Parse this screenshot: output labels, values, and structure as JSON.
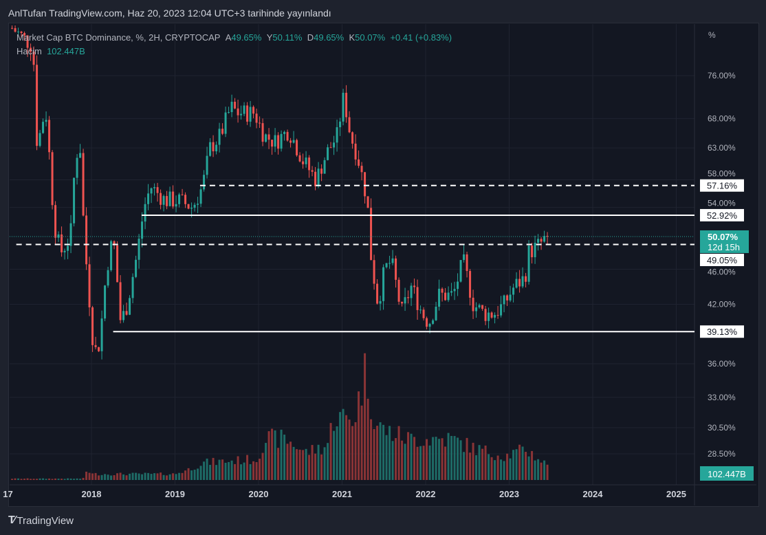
{
  "header": {
    "published": "AnlTufan TradingView.com, Haz 20, 2023 12:04 UTC+3 tarihinde yayınlandı"
  },
  "legend": {
    "symbol": "Market Cap BTC Dominance, %, 2H, CRYPTOCAP",
    "open_label": "A",
    "open": "49.65%",
    "high_label": "Y",
    "high": "50.11%",
    "low_label": "D",
    "low": "49.65%",
    "close_label": "K",
    "close": "50.07%",
    "change": "+0.41 (+0.83%)",
    "volume_label": "Hacim",
    "volume": "102.447B"
  },
  "footer": {
    "brand": "TradingView"
  },
  "colors": {
    "up": "#26a69a",
    "down": "#ef5350",
    "bg": "#131722"
  },
  "chart_data": {
    "type": "candlestick",
    "title": "Market Cap BTC Dominance, %, CRYPTOCAP",
    "yscale": "log",
    "yunit": "%",
    "ylim": [
      26.5,
      84
    ],
    "xlim": [
      2016.9,
      2025.15
    ],
    "y_ticks": [
      "76.00%",
      "68.00%",
      "63.00%",
      "58.00%",
      "54.00%",
      "46.00%",
      "42.00%",
      "36.00%",
      "33.00%",
      "30.50%",
      "28.50%"
    ],
    "y_tick_values": [
      76,
      68,
      63,
      58,
      54,
      46,
      42,
      36,
      33,
      30.5,
      28.5
    ],
    "x_ticks": [
      "17",
      "2018",
      "2019",
      "2020",
      "2021",
      "2022",
      "2023",
      "2024",
      "2025"
    ],
    "x_tick_values": [
      2017,
      2018,
      2019,
      2020,
      2021,
      2022,
      2023,
      2024,
      2025
    ],
    "close_path": [
      [
        2017.05,
        86
      ],
      [
        2017.3,
        82
      ],
      [
        2017.35,
        63
      ],
      [
        2017.45,
        70
      ],
      [
        2017.55,
        52
      ],
      [
        2017.63,
        48
      ],
      [
        2017.75,
        50
      ],
      [
        2017.81,
        62
      ],
      [
        2017.87,
        63
      ],
      [
        2017.91,
        50
      ],
      [
        2017.98,
        42
      ],
      [
        2018.03,
        37
      ],
      [
        2018.1,
        38
      ],
      [
        2018.18,
        46
      ],
      [
        2018.26,
        50
      ],
      [
        2018.35,
        40
      ],
      [
        2018.43,
        42
      ],
      [
        2018.55,
        48
      ],
      [
        2018.63,
        54
      ],
      [
        2018.71,
        57
      ],
      [
        2018.88,
        55
      ],
      [
        2019.04,
        55
      ],
      [
        2019.21,
        54
      ],
      [
        2019.33,
        57
      ],
      [
        2019.42,
        63
      ],
      [
        2019.54,
        65
      ],
      [
        2019.67,
        70
      ],
      [
        2019.75,
        69
      ],
      [
        2019.95,
        69
      ],
      [
        2020.07,
        65
      ],
      [
        2020.2,
        64
      ],
      [
        2020.36,
        66
      ],
      [
        2020.53,
        61
      ],
      [
        2020.69,
        58
      ],
      [
        2020.81,
        62
      ],
      [
        2020.94,
        65
      ],
      [
        2021.02,
        72
      ],
      [
        2021.1,
        65
      ],
      [
        2021.18,
        62
      ],
      [
        2021.3,
        55
      ],
      [
        2021.35,
        47
      ],
      [
        2021.43,
        42
      ],
      [
        2021.51,
        46
      ],
      [
        2021.59,
        47
      ],
      [
        2021.71,
        41
      ],
      [
        2021.83,
        44
      ],
      [
        2021.96,
        41
      ],
      [
        2022.04,
        40
      ],
      [
        2022.16,
        43
      ],
      [
        2022.33,
        43
      ],
      [
        2022.45,
        47
      ],
      [
        2022.57,
        42
      ],
      [
        2022.7,
        41
      ],
      [
        2022.82,
        41
      ],
      [
        2022.94,
        42
      ],
      [
        2023.06,
        44
      ],
      [
        2023.19,
        45
      ],
      [
        2023.23,
        48
      ],
      [
        2023.36,
        49
      ],
      [
        2023.46,
        50.07
      ]
    ],
    "volume_path_B": [
      [
        2017.0,
        9
      ],
      [
        2017.9,
        9
      ],
      [
        2017.95,
        70
      ],
      [
        2018.0,
        40
      ],
      [
        2019.0,
        40
      ],
      [
        2019.16,
        70
      ],
      [
        2019.33,
        115
      ],
      [
        2019.99,
        140
      ],
      [
        2020.07,
        275
      ],
      [
        2020.32,
        275
      ],
      [
        2020.57,
        185
      ],
      [
        2020.82,
        230
      ],
      [
        2020.9,
        415
      ],
      [
        2021.15,
        415
      ],
      [
        2021.28,
        735
      ],
      [
        2021.4,
        370
      ],
      [
        2021.56,
        320
      ],
      [
        2021.8,
        275
      ],
      [
        2022.3,
        275
      ],
      [
        2022.62,
        205
      ],
      [
        2022.95,
        160
      ],
      [
        2023.2,
        205
      ],
      [
        2023.45,
        102.447
      ]
    ],
    "last_price": "50.07%",
    "countdown": "12d 15h",
    "last_volume": "102.447B",
    "horizontal_levels": [
      {
        "value": 57.16,
        "label": "57.16%",
        "style": "dashed",
        "from": 2019.3
      },
      {
        "value": 52.92,
        "label": "52.92%",
        "style": "solid",
        "from": 2018.6
      },
      {
        "value": 49.05,
        "label": "49.05%",
        "style": "dashed",
        "from": 2017.1
      },
      {
        "value": 39.13,
        "label": "39.13%",
        "style": "solid",
        "from": 2018.26
      }
    ],
    "y_axis_unit_label": "%"
  }
}
